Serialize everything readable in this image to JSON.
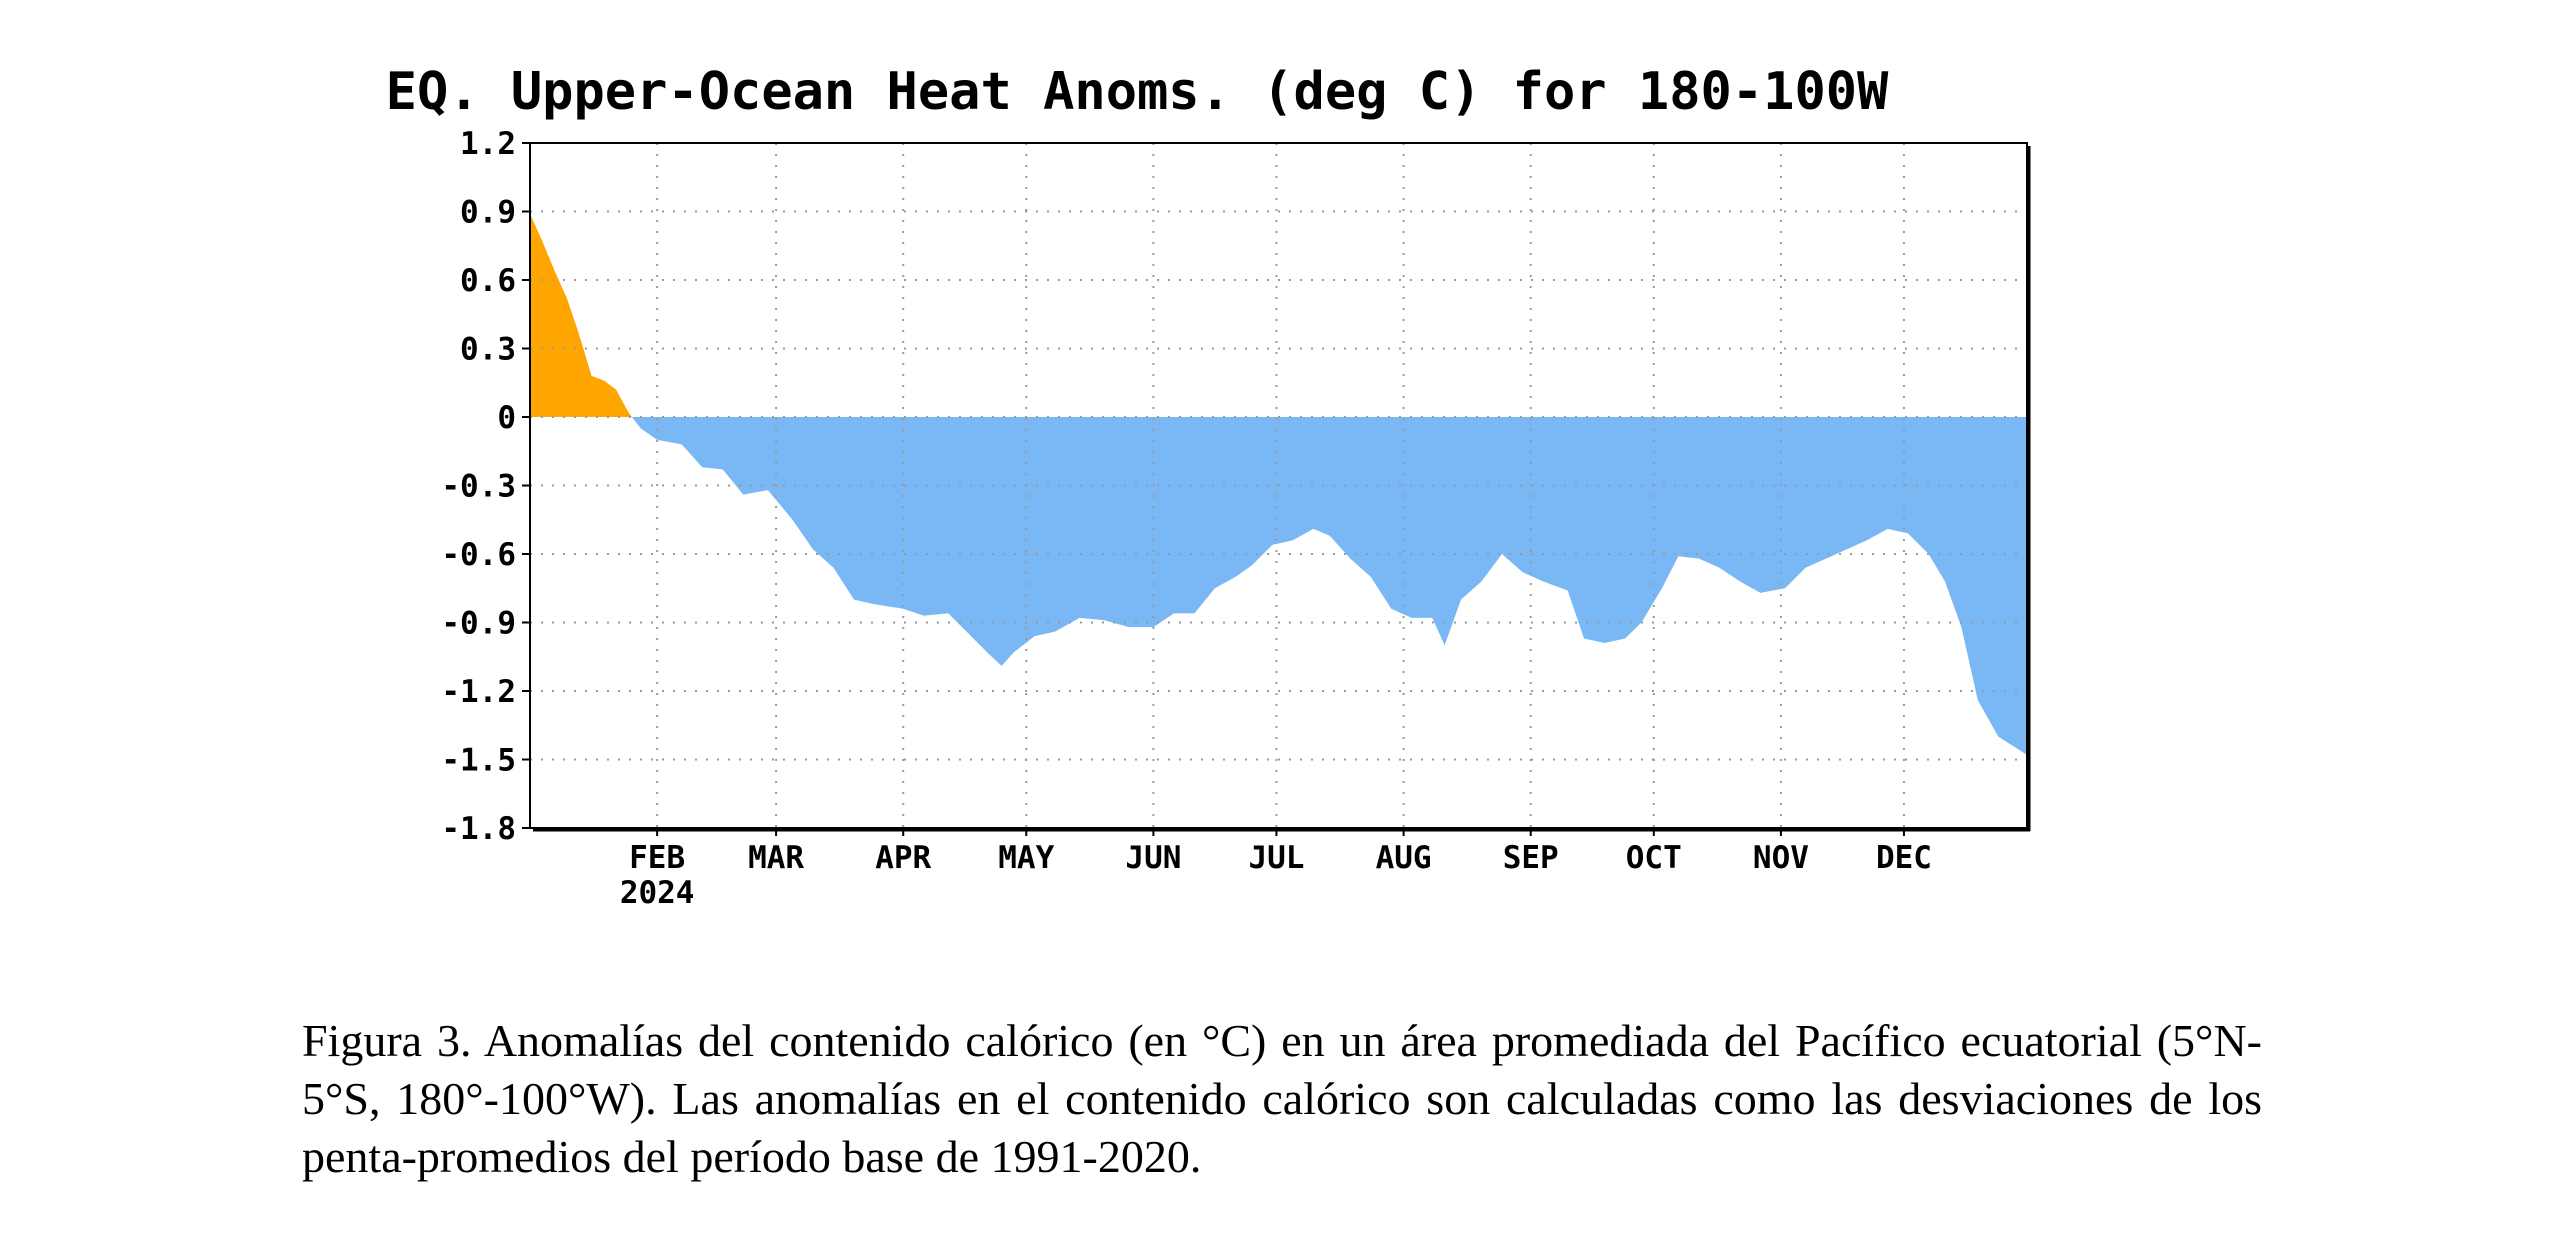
{
  "chart_data": {
    "type": "area",
    "title": "EQ. Upper-Ocean Heat Anoms. (deg C) for 180-100W",
    "xlabel": "",
    "ylabel": "",
    "ylim": [
      -1.8,
      1.2
    ],
    "yticks": [
      "1.2",
      "0.9",
      "0.6",
      "0.3",
      "0",
      "-0.3",
      "-0.6",
      "-0.9",
      "-1.2",
      "-1.5",
      "-1.8"
    ],
    "ytick_values": [
      1.2,
      0.9,
      0.6,
      0.3,
      0,
      -0.3,
      -0.6,
      -0.9,
      -1.2,
      -1.5,
      -1.8
    ],
    "xlim": [
      "2024-01-01",
      "2024-12-31"
    ],
    "xticks": [
      {
        "label": "FEB",
        "date": "2024-02-01"
      },
      {
        "label": "MAR",
        "date": "2024-03-01"
      },
      {
        "label": "APR",
        "date": "2024-04-01"
      },
      {
        "label": "MAY",
        "date": "2024-05-01"
      },
      {
        "label": "JUN",
        "date": "2024-06-01"
      },
      {
        "label": "JUL",
        "date": "2024-07-01"
      },
      {
        "label": "AUG",
        "date": "2024-08-01"
      },
      {
        "label": "SEP",
        "date": "2024-09-01"
      },
      {
        "label": "OCT",
        "date": "2024-10-01"
      },
      {
        "label": "NOV",
        "date": "2024-11-01"
      },
      {
        "label": "DEC",
        "date": "2024-12-01"
      }
    ],
    "year_label": "2024",
    "grid": true,
    "positive_color": "#ffa500",
    "negative_color": "#7ab8f5",
    "series": [
      {
        "points": [
          {
            "x": "2024-01-01",
            "y": 0.89
          },
          {
            "x": "2024-01-04",
            "y": 0.77
          },
          {
            "x": "2024-01-07",
            "y": 0.64
          },
          {
            "x": "2024-01-10",
            "y": 0.52
          },
          {
            "x": "2024-01-13",
            "y": 0.36
          },
          {
            "x": "2024-01-16",
            "y": 0.18
          },
          {
            "x": "2024-01-19",
            "y": 0.16
          },
          {
            "x": "2024-01-22",
            "y": 0.12
          },
          {
            "x": "2024-01-25",
            "y": 0.02
          },
          {
            "x": "2024-01-28",
            "y": -0.05
          },
          {
            "x": "2024-02-01",
            "y": -0.1
          },
          {
            "x": "2024-02-07",
            "y": -0.12
          },
          {
            "x": "2024-02-12",
            "y": -0.22
          },
          {
            "x": "2024-02-17",
            "y": -0.23
          },
          {
            "x": "2024-02-22",
            "y": -0.34
          },
          {
            "x": "2024-02-28",
            "y": -0.32
          },
          {
            "x": "2024-03-05",
            "y": -0.45
          },
          {
            "x": "2024-03-10",
            "y": -0.58
          },
          {
            "x": "2024-03-15",
            "y": -0.66
          },
          {
            "x": "2024-03-20",
            "y": -0.8
          },
          {
            "x": "2024-03-25",
            "y": -0.82
          },
          {
            "x": "2024-04-01",
            "y": -0.84
          },
          {
            "x": "2024-04-06",
            "y": -0.87
          },
          {
            "x": "2024-04-12",
            "y": -0.86
          },
          {
            "x": "2024-04-17",
            "y": -0.95
          },
          {
            "x": "2024-04-22",
            "y": -1.04
          },
          {
            "x": "2024-04-25",
            "y": -1.09
          },
          {
            "x": "2024-04-28",
            "y": -1.03
          },
          {
            "x": "2024-05-03",
            "y": -0.96
          },
          {
            "x": "2024-05-08",
            "y": -0.94
          },
          {
            "x": "2024-05-14",
            "y": -0.88
          },
          {
            "x": "2024-05-20",
            "y": -0.89
          },
          {
            "x": "2024-05-26",
            "y": -0.92
          },
          {
            "x": "2024-06-01",
            "y": -0.92
          },
          {
            "x": "2024-06-06",
            "y": -0.86
          },
          {
            "x": "2024-06-11",
            "y": -0.86
          },
          {
            "x": "2024-06-16",
            "y": -0.75
          },
          {
            "x": "2024-06-21",
            "y": -0.7
          },
          {
            "x": "2024-06-25",
            "y": -0.65
          },
          {
            "x": "2024-06-30",
            "y": -0.56
          },
          {
            "x": "2024-07-05",
            "y": -0.54
          },
          {
            "x": "2024-07-10",
            "y": -0.49
          },
          {
            "x": "2024-07-14",
            "y": -0.52
          },
          {
            "x": "2024-07-19",
            "y": -0.62
          },
          {
            "x": "2024-07-24",
            "y": -0.7
          },
          {
            "x": "2024-07-29",
            "y": -0.84
          },
          {
            "x": "2024-08-03",
            "y": -0.88
          },
          {
            "x": "2024-08-08",
            "y": -0.88
          },
          {
            "x": "2024-08-11",
            "y": -1.0
          },
          {
            "x": "2024-08-15",
            "y": -0.8
          },
          {
            "x": "2024-08-20",
            "y": -0.72
          },
          {
            "x": "2024-08-25",
            "y": -0.6
          },
          {
            "x": "2024-08-30",
            "y": -0.68
          },
          {
            "x": "2024-09-04",
            "y": -0.72
          },
          {
            "x": "2024-09-10",
            "y": -0.76
          },
          {
            "x": "2024-09-14",
            "y": -0.97
          },
          {
            "x": "2024-09-19",
            "y": -0.99
          },
          {
            "x": "2024-09-24",
            "y": -0.97
          },
          {
            "x": "2024-09-28",
            "y": -0.9
          },
          {
            "x": "2024-10-03",
            "y": -0.75
          },
          {
            "x": "2024-10-07",
            "y": -0.61
          },
          {
            "x": "2024-10-12",
            "y": -0.62
          },
          {
            "x": "2024-10-17",
            "y": -0.66
          },
          {
            "x": "2024-10-22",
            "y": -0.72
          },
          {
            "x": "2024-10-27",
            "y": -0.77
          },
          {
            "x": "2024-11-02",
            "y": -0.75
          },
          {
            "x": "2024-11-07",
            "y": -0.66
          },
          {
            "x": "2024-11-12",
            "y": -0.62
          },
          {
            "x": "2024-11-17",
            "y": -0.58
          },
          {
            "x": "2024-11-22",
            "y": -0.54
          },
          {
            "x": "2024-11-27",
            "y": -0.49
          },
          {
            "x": "2024-12-02",
            "y": -0.51
          },
          {
            "x": "2024-12-07",
            "y": -0.6
          },
          {
            "x": "2024-12-11",
            "y": -0.72
          },
          {
            "x": "2024-12-15",
            "y": -0.92
          },
          {
            "x": "2024-12-19",
            "y": -1.24
          },
          {
            "x": "2024-12-24",
            "y": -1.4
          },
          {
            "x": "2024-12-31",
            "y": -1.48
          }
        ]
      }
    ]
  },
  "caption": {
    "text": "Figura 3. Anomalías del contenido calórico (en °C) en un área promediada del Pacífico ecuatorial (5°N-5°S, 180°-100°W). Las anomalías en el contenido calórico son calculadas como las desviaciones de los penta-promedios del período base de 1991-2020."
  }
}
